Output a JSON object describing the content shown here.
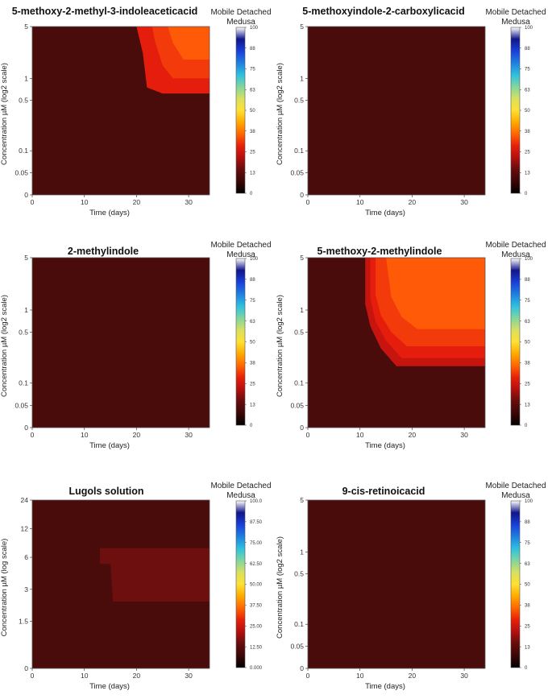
{
  "colors": {
    "background_region": "#4a0b0b",
    "colormap_stops": [
      "#000000",
      "#3b0707",
      "#640d0d",
      "#b30f0f",
      "#e6200a",
      "#ff6600",
      "#ffaa00",
      "#ffe033",
      "#d8e060",
      "#7fd6a0",
      "#2ec0e0",
      "#1e7fe0",
      "#1a3fd8",
      "#10168a",
      "#ffffff"
    ]
  },
  "chart_data": [
    {
      "type": "heatmap",
      "title": "5-methoxy-2-methyl-3-indoleaceticacid",
      "xlabel": "Time (days)",
      "ylabel": "Concentration µM (log2 scale)",
      "xticks": [
        "0",
        "10",
        "20",
        "30"
      ],
      "xlim": [
        0,
        34
      ],
      "yticks": [
        {
          "label": "0",
          "value": 0
        },
        {
          "label": "0.05",
          "value": 0.05
        },
        {
          "label": "0.1",
          "value": 0.1
        },
        {
          "label": "0.5",
          "value": 0.5
        },
        {
          "label": "1",
          "value": 1
        },
        {
          "label": "5",
          "value": 5
        }
      ],
      "colorbar": {
        "title": "Mobile Detached Medusa",
        "ticks": [
          "100",
          "88",
          "75",
          "63",
          "50",
          "38",
          "25",
          "13",
          "0"
        ],
        "range": [
          0,
          100
        ]
      },
      "regions": [
        {
          "level": 4,
          "polygon": [
            [
              20,
              5
            ],
            [
              34,
              5
            ],
            [
              34,
              0.62
            ],
            [
              25,
              0.62
            ],
            [
              22,
              0.75
            ],
            [
              21.2,
              2.2
            ],
            [
              20,
              5
            ]
          ]
        },
        {
          "level": 5,
          "polygon": [
            [
              23,
              5
            ],
            [
              34,
              5
            ],
            [
              34,
              1.0
            ],
            [
              27,
              1.0
            ],
            [
              25,
              1.5
            ],
            [
              23.5,
              3.2
            ],
            [
              23,
              5
            ]
          ]
        },
        {
          "level": 6,
          "polygon": [
            [
              26,
              5
            ],
            [
              34,
              5
            ],
            [
              34,
              1.8
            ],
            [
              29,
              1.8
            ],
            [
              27,
              3.0
            ],
            [
              26,
              5
            ]
          ]
        }
      ]
    },
    {
      "type": "heatmap",
      "title": "5-methoxyindole-2-carboxylicacid",
      "xlabel": "Time (days)",
      "ylabel": "Concentration µM (log2 scale)",
      "xticks": [
        "0",
        "10",
        "20",
        "30"
      ],
      "xlim": [
        0,
        34
      ],
      "yticks": [
        {
          "label": "0",
          "value": 0
        },
        {
          "label": "0.05",
          "value": 0.05
        },
        {
          "label": "0.1",
          "value": 0.1
        },
        {
          "label": "0.5",
          "value": 0.5
        },
        {
          "label": "1",
          "value": 1
        },
        {
          "label": "5",
          "value": 5
        }
      ],
      "colorbar": {
        "title": "Mobile Detached Medusa",
        "ticks": [
          "100",
          "88",
          "75",
          "63",
          "50",
          "38",
          "25",
          "13",
          "0"
        ],
        "range": [
          0,
          100
        ]
      },
      "regions": []
    },
    {
      "type": "heatmap",
      "title": "2-methylindole",
      "xlabel": "Time (days)",
      "ylabel": "Concentration µM (log2 scale)",
      "xticks": [
        "0",
        "10",
        "20",
        "30"
      ],
      "xlim": [
        0,
        34
      ],
      "yticks": [
        {
          "label": "0",
          "value": 0
        },
        {
          "label": "0.05",
          "value": 0.05
        },
        {
          "label": "0.1",
          "value": 0.1
        },
        {
          "label": "0.5",
          "value": 0.5
        },
        {
          "label": "1",
          "value": 1
        },
        {
          "label": "5",
          "value": 5
        }
      ],
      "colorbar": {
        "title": "Mobile Detached Medusa",
        "ticks": [
          "100",
          "88",
          "75",
          "63",
          "50",
          "38",
          "25",
          "13",
          "0"
        ],
        "range": [
          0,
          100
        ]
      },
      "regions": []
    },
    {
      "type": "heatmap",
      "title": "5-methoxy-2-methylindole",
      "xlabel": "Time (days)",
      "ylabel": "Concentration µM (log2 scale)",
      "xticks": [
        "0",
        "10",
        "20",
        "30"
      ],
      "xlim": [
        0,
        34
      ],
      "yticks": [
        {
          "label": "0",
          "value": 0
        },
        {
          "label": "0.05",
          "value": 0.05
        },
        {
          "label": "0.1",
          "value": 0.1
        },
        {
          "label": "0.5",
          "value": 0.5
        },
        {
          "label": "1",
          "value": 1
        },
        {
          "label": "5",
          "value": 5
        }
      ],
      "colorbar": {
        "title": "Mobile Detached Medusa",
        "ticks": [
          "100",
          "88",
          "75",
          "63",
          "50",
          "38",
          "25",
          "13",
          "0"
        ],
        "range": [
          0,
          100
        ]
      },
      "regions": [
        {
          "level": 3,
          "polygon": [
            [
              11,
              5
            ],
            [
              34,
              5
            ],
            [
              34,
              0.17
            ],
            [
              17,
              0.17
            ],
            [
              14,
              0.3
            ],
            [
              12,
              0.6
            ],
            [
              11,
              1.2
            ],
            [
              11,
              5
            ]
          ]
        },
        {
          "level": 4,
          "polygon": [
            [
              12,
              5
            ],
            [
              34,
              5
            ],
            [
              34,
              0.22
            ],
            [
              18,
              0.22
            ],
            [
              15,
              0.38
            ],
            [
              13,
              0.7
            ],
            [
              12,
              1.4
            ],
            [
              12,
              5
            ]
          ]
        },
        {
          "level": 5,
          "polygon": [
            [
              13,
              5
            ],
            [
              34,
              5
            ],
            [
              34,
              0.32
            ],
            [
              19,
              0.32
            ],
            [
              16,
              0.5
            ],
            [
              14,
              0.85
            ],
            [
              13,
              1.6
            ],
            [
              13,
              5
            ]
          ]
        },
        {
          "level": 6,
          "polygon": [
            [
              15,
              5
            ],
            [
              34,
              5
            ],
            [
              34,
              0.55
            ],
            [
              21,
              0.55
            ],
            [
              18,
              0.8
            ],
            [
              16,
              1.5
            ],
            [
              15,
              5
            ]
          ]
        }
      ]
    },
    {
      "type": "heatmap",
      "title": "Lugols solution",
      "xlabel": "Time (days)",
      "ylabel": "Concentration µM (log scale)",
      "xticks": [
        "0",
        "10",
        "20",
        "30"
      ],
      "xlim": [
        0,
        34
      ],
      "yticks": [
        {
          "label": "0",
          "value": 0
        },
        {
          "label": "1.5",
          "value": 1.5
        },
        {
          "label": "3",
          "value": 3
        },
        {
          "label": "6",
          "value": 6
        },
        {
          "label": "12",
          "value": 12
        },
        {
          "label": "24",
          "value": 24
        }
      ],
      "colorbar": {
        "title": "Mobile Detached Medusa",
        "ticks": [
          "100.0",
          "87.50",
          "75.00",
          "62.50",
          "50.00",
          "37.50",
          "25.00",
          "12.50",
          "0.000"
        ],
        "range": [
          0,
          100
        ]
      },
      "regions": [
        {
          "level": 2,
          "polygon": [
            [
              13,
              7.5
            ],
            [
              34,
              7.5
            ],
            [
              34,
              2.3
            ],
            [
              15.5,
              2.3
            ],
            [
              15,
              5.2
            ],
            [
              13,
              5.2
            ],
            [
              13,
              7.5
            ]
          ]
        }
      ]
    },
    {
      "type": "heatmap",
      "title": "9-cis-retinoicacid",
      "xlabel": "Time (days)",
      "ylabel": "Concentration µM (log2 scale)",
      "xticks": [
        "0",
        "10",
        "20",
        "30"
      ],
      "xlim": [
        0,
        34
      ],
      "yticks": [
        {
          "label": "0",
          "value": 0
        },
        {
          "label": "0.05",
          "value": 0.05
        },
        {
          "label": "0.1",
          "value": 0.1
        },
        {
          "label": "0.5",
          "value": 0.5
        },
        {
          "label": "1",
          "value": 1
        },
        {
          "label": "5",
          "value": 5
        }
      ],
      "colorbar": {
        "title": "Mobile Detached Medusa",
        "ticks": [
          "100",
          "88",
          "75",
          "63",
          "50",
          "38",
          "25",
          "13",
          "0"
        ],
        "range": [
          0,
          100
        ]
      },
      "regions": []
    }
  ]
}
